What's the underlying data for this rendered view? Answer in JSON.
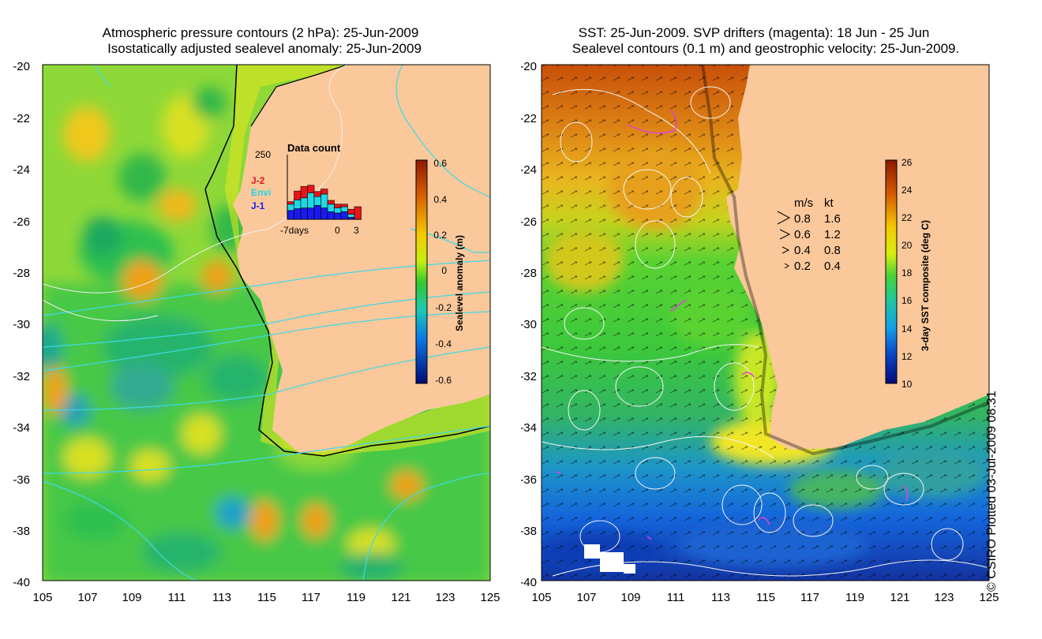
{
  "left_panel": {
    "title_line1": "Atmospheric pressure contours (2 hPa): 25-Jun-2009",
    "title_line2": "Isostatically adjusted sealevel anomaly: 25-Jun-2009",
    "lat_ticks": [
      "-20",
      "-22",
      "-24",
      "-26",
      "-28",
      "-30",
      "-32",
      "-34",
      "-36",
      "-38",
      "-40"
    ],
    "lon_ticks": [
      "105",
      "107",
      "109",
      "111",
      "113",
      "115",
      "117",
      "119",
      "121",
      "123",
      "125"
    ],
    "colorbar": {
      "label": "Sealevel anomaly (m)",
      "ticks": [
        "0.6",
        "0.4",
        "0.2",
        "0",
        "-0.2",
        "-0.4",
        "-0.6"
      ]
    },
    "histogram": {
      "title": "Data count",
      "y_max_label": "250",
      "x_label_left": "-7days",
      "x_label_zero": "0",
      "x_label_right": "3",
      "legend": [
        {
          "name": "J-2",
          "color": "#e8141a"
        },
        {
          "name": "Envi",
          "color": "#1ed8e6"
        },
        {
          "name": "J-1",
          "color": "#1a1aee"
        }
      ],
      "bars": [
        {
          "j2": 10,
          "envi": 25,
          "j1": 35
        },
        {
          "j2": 35,
          "envi": 35,
          "j1": 42
        },
        {
          "j2": 45,
          "envi": 40,
          "j1": 45
        },
        {
          "j2": 30,
          "envi": 60,
          "j1": 45
        },
        {
          "j2": 20,
          "envi": 35,
          "j1": 55
        },
        {
          "j2": 20,
          "envi": 55,
          "j1": 45
        },
        {
          "j2": 15,
          "envi": 30,
          "j1": 30
        },
        {
          "j2": 15,
          "envi": 20,
          "j1": 25
        },
        {
          "j2": 10,
          "envi": 20,
          "j1": 30
        },
        {
          "j2": 20,
          "envi": 12,
          "j1": 8
        },
        {
          "j2": 50,
          "envi": 0,
          "j1": 0
        }
      ]
    }
  },
  "right_panel": {
    "title_line1": "SST: 25-Jun-2009. SVP drifters (magenta): 18 Jun - 25 Jun",
    "title_line2": "Sealevel contours (0.1 m) and geostrophic velocity: 25-Jun-2009.",
    "lat_ticks": [
      "-20",
      "-22",
      "-24",
      "-26",
      "-28",
      "-30",
      "-32",
      "-34",
      "-36",
      "-38",
      "-40"
    ],
    "lon_ticks": [
      "105",
      "107",
      "109",
      "111",
      "113",
      "115",
      "117",
      "119",
      "121",
      "123",
      "125"
    ],
    "colorbar": {
      "label": "3-day SST composite (deg C)",
      "ticks": [
        "26",
        "24",
        "22",
        "20",
        "18",
        "16",
        "14",
        "12",
        "10"
      ]
    },
    "velocity_legend": {
      "header_ms": "m/s",
      "header_kt": "kt",
      "rows": [
        {
          "ms": "0.8",
          "kt": "1.6"
        },
        {
          "ms": "0.6",
          "kt": "1.2"
        },
        {
          "ms": "0.4",
          "kt": "0.8"
        },
        {
          "ms": "0.2",
          "kt": "0.4"
        }
      ]
    }
  },
  "credit": "© CSIRO Plotted 03-Jul-2009 08:31",
  "colors": {
    "land": "#fac89b",
    "coast_line": "#000000",
    "contour_cyan": "#3fd9e6",
    "drifter": "#e040e0"
  }
}
